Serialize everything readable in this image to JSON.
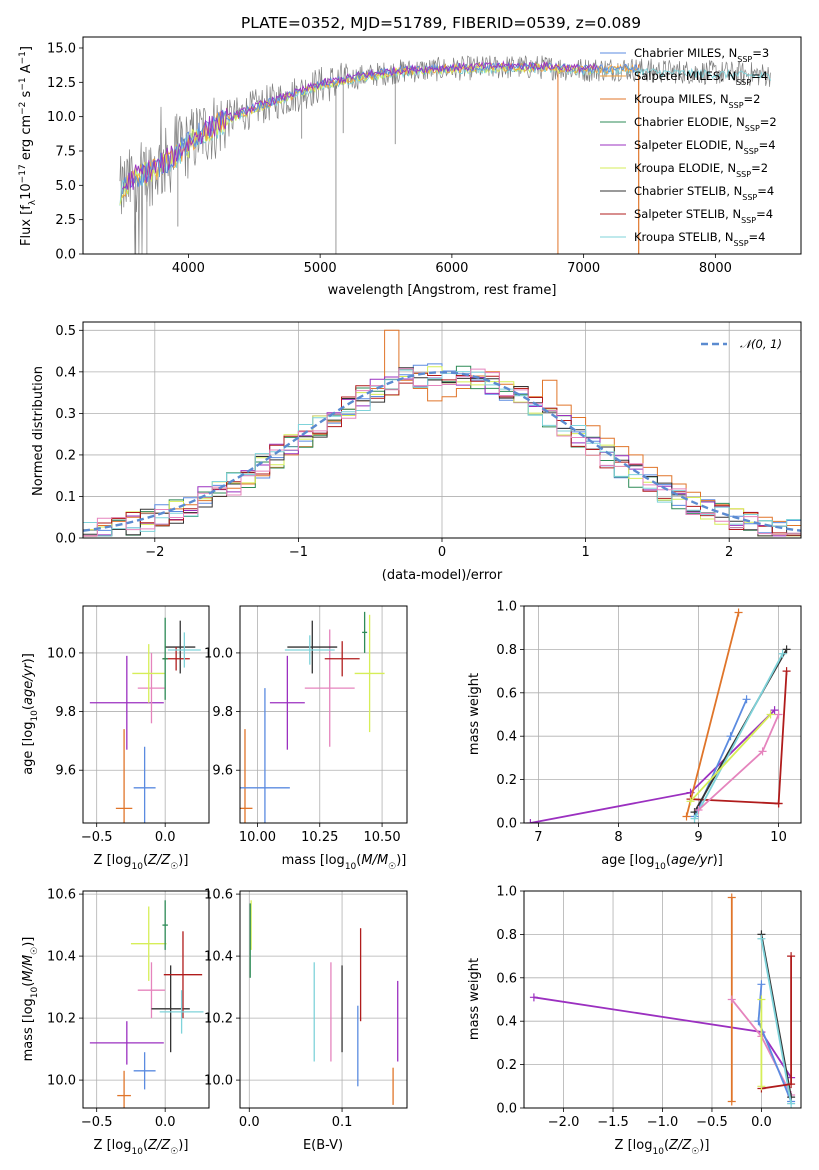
{
  "title": "PLATE=0352, MJD=51789, FIBERID=0539, z=0.089",
  "colors": {
    "Chabrier MILES": "#5b8be0",
    "Salpeter MILES": "#f2a23c",
    "Kroupa MILES": "#e0752a",
    "Chabrier ELODIE": "#2e8b57",
    "Salpeter ELODIE": "#9b30c0",
    "Kroupa ELODIE": "#d6ee58",
    "Chabrier STELIB": "#333333",
    "Salpeter STELIB": "#b01c1c",
    "Kroupa STELIB": "#7fd3da",
    "extra_pink": "#e584bd",
    "data_gray": "#808080",
    "gauss": "#5b8bd0"
  },
  "chart_data": [
    {
      "id": "spectrum",
      "type": "line",
      "title": "PLATE=0352, MJD=51789, FIBERID=0539, z=0.089",
      "xlabel": "wavelength [Angstrom, rest frame]",
      "ylabel": "Flux [f_λ 10^-17 erg cm^-2 s^-1 A^-1]",
      "xlim": [
        3200,
        8650
      ],
      "ylim": [
        0,
        15.8
      ],
      "xticks": [
        "4000",
        "5000",
        "6000",
        "7000",
        "8000"
      ],
      "yticks": [
        "0.0",
        "2.5",
        "5.0",
        "7.5",
        "10.0",
        "12.5",
        "15.0"
      ],
      "grid": false,
      "legend_position": "top-right",
      "continuum": [
        [
          3480,
          4.5
        ],
        [
          3600,
          5.6
        ],
        [
          3750,
          6.2
        ],
        [
          3850,
          6.8
        ],
        [
          3950,
          7.6
        ],
        [
          4100,
          8.8
        ],
        [
          4300,
          9.8
        ],
        [
          4500,
          10.6
        ],
        [
          4800,
          11.6
        ],
        [
          5000,
          12.3
        ],
        [
          5300,
          12.9
        ],
        [
          5600,
          13.3
        ],
        [
          6000,
          13.5
        ],
        [
          6400,
          13.6
        ],
        [
          6700,
          13.6
        ],
        [
          7000,
          13.4
        ],
        [
          7300,
          13.5
        ],
        [
          7600,
          13.3
        ],
        [
          8000,
          13.2
        ],
        [
          8300,
          13.1
        ],
        [
          8450,
          13.0
        ]
      ],
      "legend": [
        {
          "label": "Chabrier MILES, N_SSP=3",
          "text": "Chabrier MILES, N",
          "n": "=3"
        },
        {
          "label": "Salpeter MILES, N_SSP=4",
          "text": "Salpeter MILES, N",
          "n": "=4"
        },
        {
          "label": "Kroupa MILES, N_SSP=2",
          "text": "Kroupa MILES, N",
          "n": "=2"
        },
        {
          "label": "Chabrier ELODIE, N_SSP=2",
          "text": "Chabrier ELODIE, N",
          "n": "=2"
        },
        {
          "label": "Salpeter ELODIE, N_SSP=4",
          "text": "Salpeter ELODIE, N",
          "n": "=4"
        },
        {
          "label": "Kroupa ELODIE, N_SSP=2",
          "text": "Kroupa ELODIE, N",
          "n": "=2"
        },
        {
          "label": "Chabrier STELIB, N_SSP=4",
          "text": "Chabrier STELIB, N",
          "n": "=4"
        },
        {
          "label": "Salpeter STELIB, N_SSP=4",
          "text": "Salpeter STELIB, N",
          "n": "=4"
        },
        {
          "label": "Kroupa STELIB, N_SSP=4",
          "text": "Kroupa STELIB, N",
          "n": "=4"
        }
      ]
    },
    {
      "id": "residuals",
      "type": "line",
      "xlabel": "(data-model)/error",
      "ylabel": "Normed distribution",
      "xlim": [
        -2.5,
        2.5
      ],
      "ylim": [
        0,
        0.52
      ],
      "xticks": [
        "−2",
        "−1",
        "0",
        "1",
        "2"
      ],
      "yticks": [
        "0.0",
        "0.1",
        "0.2",
        "0.3",
        "0.4",
        "0.5"
      ],
      "grid": true,
      "legend_position": "top-right",
      "legend": "N(0,1)",
      "series_colors": [
        "Chabrier MILES",
        "Kroupa MILES",
        "Chabrier ELODIE",
        "Salpeter ELODIE",
        "Kroupa ELODIE",
        "Chabrier STELIB",
        "Salpeter STELIB",
        "Kroupa STELIB",
        "extra_pink"
      ],
      "bin_start": -2.5,
      "bin_width": 0.1,
      "orange_bins": [
        0.02,
        0.03,
        0.04,
        0.05,
        0.06,
        0.06,
        0.07,
        0.08,
        0.09,
        0.1,
        0.12,
        0.13,
        0.15,
        0.17,
        0.2,
        0.22,
        0.25,
        0.28,
        0.31,
        0.33,
        0.36,
        0.5,
        0.38,
        0.36,
        0.33,
        0.34,
        0.36,
        0.39,
        0.4,
        0.37,
        0.36,
        0.34,
        0.38,
        0.32,
        0.29,
        0.27,
        0.24,
        0.22,
        0.2,
        0.17,
        0.15,
        0.13,
        0.11,
        0.09,
        0.08,
        0.07,
        0.06,
        0.05,
        0.04,
        0.03
      ]
    },
    {
      "id": "age_vs_Z",
      "type": "scatter",
      "xlabel": "Z [log10(Z/Z☉)]",
      "ylabel": "age  [log10(age/yr)]",
      "xlim": [
        -0.6,
        0.32
      ],
      "ylim": [
        9.42,
        10.16
      ],
      "xticks": [
        "−0.5",
        "0.0"
      ],
      "yticks": [
        "9.6",
        "9.8",
        "10.0"
      ],
      "grid": true,
      "points": [
        {
          "c": "Kroupa MILES",
          "x": -0.3,
          "y": 9.47,
          "xe": 0.06,
          "ye": 0.27
        },
        {
          "c": "Chabrier MILES",
          "x": -0.15,
          "y": 9.54,
          "xe": 0.08,
          "ye": 0.14
        },
        {
          "c": "Salpeter ELODIE",
          "x": -0.28,
          "y": 9.83,
          "xe": 0.27,
          "ye": 0.16
        },
        {
          "c": "extra_pink",
          "x": -0.1,
          "y": 9.88,
          "xe": 0.1,
          "ye": 0.12
        },
        {
          "c": "Kroupa ELODIE",
          "x": -0.12,
          "y": 9.93,
          "xe": 0.12,
          "ye": 0.1
        },
        {
          "c": "Chabrier STELIB",
          "x": 0.11,
          "y": 10.02,
          "xe": 0.11,
          "ye": 0.09
        },
        {
          "c": "Salpeter STELIB",
          "x": 0.08,
          "y": 9.98,
          "xe": 0.1,
          "ye": 0.04
        },
        {
          "c": "Kroupa STELIB",
          "x": 0.14,
          "y": 10.01,
          "xe": 0.12,
          "ye": 0.06
        },
        {
          "c": "Chabrier ELODIE",
          "x": 0.0,
          "y": 9.98,
          "xe": 0.02,
          "ye": 0.14
        }
      ]
    },
    {
      "id": "age_vs_mass",
      "type": "scatter",
      "xlabel": "mass [log10(M/M☉)]",
      "ylabel": "",
      "xlim": [
        9.93,
        10.6
      ],
      "ylim": [
        9.42,
        10.16
      ],
      "xticks": [
        "10.00",
        "10.25",
        "10.50"
      ],
      "yticks": [
        "9.6",
        "9.8",
        "10.0"
      ],
      "grid": true,
      "points": [
        {
          "c": "Kroupa MILES",
          "x": 9.95,
          "y": 9.47,
          "xe": 0.03,
          "ye": 0.27
        },
        {
          "c": "Chabrier MILES",
          "x": 10.03,
          "y": 9.54,
          "xe": 0.1,
          "ye": 0.34
        },
        {
          "c": "Salpeter ELODIE",
          "x": 10.12,
          "y": 9.83,
          "xe": 0.07,
          "ye": 0.16
        },
        {
          "c": "extra_pink",
          "x": 10.29,
          "y": 9.88,
          "xe": 0.1,
          "ye": 0.2
        },
        {
          "c": "Kroupa ELODIE",
          "x": 10.45,
          "y": 9.93,
          "xe": 0.06,
          "ye": 0.2
        },
        {
          "c": "Chabrier STELIB",
          "x": 10.22,
          "y": 10.02,
          "xe": 0.1,
          "ye": 0.09
        },
        {
          "c": "Salpeter STELIB",
          "x": 10.34,
          "y": 9.98,
          "xe": 0.07,
          "ye": 0.06
        },
        {
          "c": "Kroupa STELIB",
          "x": 10.21,
          "y": 10.01,
          "xe": 0.1,
          "ye": 0.05
        },
        {
          "c": "Chabrier ELODIE",
          "x": 10.43,
          "y": 10.07,
          "xe": 0.01,
          "ye": 0.07
        }
      ]
    },
    {
      "id": "weight_vs_age",
      "type": "line",
      "xlabel": "age  [log10(age/yr)]",
      "ylabel": "mass weight",
      "xlim": [
        6.82,
        10.28
      ],
      "ylim": [
        0,
        1
      ],
      "xticks": [
        "7",
        "8",
        "9",
        "10"
      ],
      "yticks": [
        "0.0",
        "0.2",
        "0.4",
        "0.6",
        "0.8",
        "1.0"
      ],
      "grid": true,
      "series": [
        {
          "c": "Salpeter ELODIE",
          "x": [
            6.9,
            8.9,
            9.95
          ],
          "y": [
            0.0,
            0.14,
            0.52
          ]
        },
        {
          "c": "Kroupa MILES",
          "x": [
            8.85,
            9.5
          ],
          "y": [
            0.03,
            0.97
          ]
        },
        {
          "c": "Chabrier MILES",
          "x": [
            8.95,
            9.4,
            9.6
          ],
          "y": [
            0.03,
            0.4,
            0.57
          ]
        },
        {
          "c": "Salpeter STELIB",
          "x": [
            8.9,
            10.0,
            10.1,
            10.0
          ],
          "y": [
            0.11,
            0.09,
            0.7,
            0.09
          ]
        },
        {
          "c": "Chabrier STELIB",
          "x": [
            8.95,
            10.1
          ],
          "y": [
            0.05,
            0.8
          ]
        },
        {
          "c": "Kroupa STELIB",
          "x": [
            8.95,
            10.05
          ],
          "y": [
            0.02,
            0.78
          ]
        },
        {
          "c": "extra_pink",
          "x": [
            9.0,
            9.8,
            10.0
          ],
          "y": [
            0.06,
            0.33,
            0.5
          ]
        },
        {
          "c": "Kroupa ELODIE",
          "x": [
            8.9,
            9.9
          ],
          "y": [
            0.1,
            0.5
          ]
        }
      ]
    },
    {
      "id": "mass_vs_Z",
      "type": "scatter",
      "xlabel": "Z [log10(Z/Z☉)]",
      "ylabel": "mass [log10(M/M☉)]",
      "xlim": [
        -0.6,
        0.32
      ],
      "ylim": [
        9.91,
        10.61
      ],
      "xticks": [
        "−0.5",
        "0.0"
      ],
      "yticks": [
        "10.0",
        "10.2",
        "10.4",
        "10.6"
      ],
      "grid": true,
      "points": [
        {
          "c": "Kroupa MILES",
          "x": -0.3,
          "y": 9.95,
          "xe": 0.05,
          "ye": 0.08
        },
        {
          "c": "Chabrier MILES",
          "x": -0.15,
          "y": 10.03,
          "xe": 0.08,
          "ye": 0.06
        },
        {
          "c": "Salpeter ELODIE",
          "x": -0.28,
          "y": 10.12,
          "xe": 0.27,
          "ye": 0.07
        },
        {
          "c": "extra_pink",
          "x": -0.1,
          "y": 10.29,
          "xe": 0.1,
          "ye": 0.09
        },
        {
          "c": "Kroupa ELODIE",
          "x": -0.12,
          "y": 10.44,
          "xe": 0.13,
          "ye": 0.12
        },
        {
          "c": "Chabrier STELIB",
          "x": 0.04,
          "y": 10.23,
          "xe": 0.14,
          "ye": 0.14
        },
        {
          "c": "Salpeter STELIB",
          "x": 0.13,
          "y": 10.34,
          "xe": 0.14,
          "ye": 0.14
        },
        {
          "c": "Kroupa STELIB",
          "x": 0.12,
          "y": 10.22,
          "xe": 0.16,
          "ye": 0.07
        },
        {
          "c": "Chabrier ELODIE",
          "x": 0.0,
          "y": 10.5,
          "xe": 0.02,
          "ye": 0.08
        }
      ]
    },
    {
      "id": "mass_vs_EBV",
      "type": "scatter",
      "xlabel": "E(B-V)",
      "ylabel": "",
      "xlim": [
        -0.01,
        0.17
      ],
      "ylim": [
        9.91,
        10.61
      ],
      "xticks": [
        "0.0",
        "0.1"
      ],
      "yticks": [
        "10.0",
        "10.2",
        "10.4",
        "10.6"
      ],
      "grid": true,
      "points": [
        {
          "c": "Kroupa STELIB",
          "x": 0.07,
          "y": 10.22,
          "ye": 0.16
        },
        {
          "c": "extra_pink",
          "x": 0.088,
          "y": 10.22,
          "ye": 0.16
        },
        {
          "c": "Chabrier STELIB",
          "x": 0.1,
          "y": 10.23,
          "ye": 0.14
        },
        {
          "c": "Chabrier MILES",
          "x": 0.117,
          "y": 10.11,
          "ye": 0.13
        },
        {
          "c": "Salpeter STELIB",
          "x": 0.12,
          "y": 10.34,
          "ye": 0.15
        },
        {
          "c": "Salpeter ELODIE",
          "x": 0.16,
          "y": 10.19,
          "ye": 0.13
        },
        {
          "c": "Kroupa MILES",
          "x": 0.155,
          "y": 9.98,
          "ye": 0.06
        },
        {
          "c": "Kroupa ELODIE",
          "x": 0.002,
          "y": 10.5,
          "ye": 0.08
        },
        {
          "c": "Chabrier ELODIE",
          "x": 0.001,
          "y": 10.45,
          "ye": 0.12
        }
      ]
    },
    {
      "id": "weight_vs_Z",
      "type": "line",
      "xlabel": "Z [log10(Z/Z☉)]",
      "ylabel": "mass weight",
      "xlim": [
        -2.4,
        0.4
      ],
      "ylim": [
        0,
        1
      ],
      "xticks": [
        "−2.0",
        "−1.5",
        "−1.0",
        "−0.5",
        "0.0"
      ],
      "yticks": [
        "0.0",
        "0.2",
        "0.4",
        "0.6",
        "0.8",
        "1.0"
      ],
      "grid": true,
      "series": [
        {
          "c": "Salpeter ELODIE",
          "x": [
            -2.3,
            0.0,
            0.3
          ],
          "y": [
            0.51,
            0.35,
            0.14
          ]
        },
        {
          "c": "Kroupa MILES",
          "x": [
            -0.3,
            -0.3
          ],
          "y": [
            0.03,
            0.97
          ]
        },
        {
          "c": "extra_pink",
          "x": [
            -0.3,
            0.0,
            0.3
          ],
          "y": [
            0.5,
            0.33,
            0.06
          ]
        },
        {
          "c": "Chabrier MILES",
          "x": [
            0.0,
            -0.03,
            0.3
          ],
          "y": [
            0.57,
            0.4,
            0.03
          ]
        },
        {
          "c": "Chabrier STELIB",
          "x": [
            0.0,
            0.3
          ],
          "y": [
            0.8,
            0.05
          ]
        },
        {
          "c": "Kroupa STELIB",
          "x": [
            0.0,
            0.3
          ],
          "y": [
            0.78,
            0.02
          ]
        },
        {
          "c": "Salpeter STELIB",
          "x": [
            0.0,
            0.3,
            0.3
          ],
          "y": [
            0.09,
            0.11,
            0.7
          ]
        },
        {
          "c": "Kroupa ELODIE",
          "x": [
            0.0,
            0.0
          ],
          "y": [
            0.1,
            0.5
          ]
        }
      ]
    }
  ]
}
